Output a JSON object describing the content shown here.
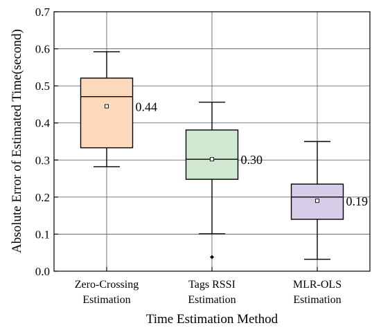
{
  "chart_data": {
    "type": "box",
    "xlabel": "Time Estimation Method",
    "ylabel": "Absolute Error of Estimated Time(second)",
    "ylim": [
      0,
      0.7
    ],
    "yticks": [
      "0.0",
      "0.1",
      "0.2",
      "0.3",
      "0.4",
      "0.5",
      "0.6",
      "0.7"
    ],
    "grid": true,
    "boxes": [
      {
        "category_lines": [
          "Zero-Crossing",
          "Estimation"
        ],
        "whisker_low": 0.282,
        "q1": 0.333,
        "median": 0.471,
        "q3": 0.521,
        "whisker_high": 0.592,
        "mean": 0.445,
        "mean_label": "0.44",
        "outliers": [],
        "fill": "#fdd9bb"
      },
      {
        "category_lines": [
          "Tags RSSI",
          "Estimation"
        ],
        "whisker_low": 0.101,
        "q1": 0.248,
        "median": 0.302,
        "q3": 0.381,
        "whisker_high": 0.456,
        "mean": 0.302,
        "mean_label": "0.30",
        "outliers": [
          0.038
        ],
        "fill": "#cfe8cf"
      },
      {
        "category_lines": [
          "MLR-OLS",
          "Estimation"
        ],
        "whisker_low": 0.032,
        "q1": 0.14,
        "median": 0.2,
        "q3": 0.235,
        "whisker_high": 0.35,
        "mean": 0.19,
        "mean_label": "0.19",
        "outliers": [],
        "fill": "#d8cde9"
      }
    ]
  }
}
